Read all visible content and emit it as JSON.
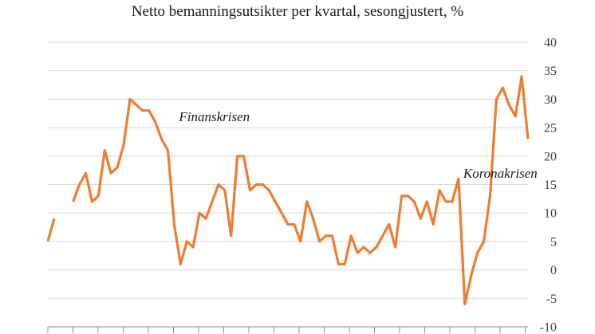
{
  "chart_data": {
    "type": "line",
    "title": "Netto bemanningsutsikter per kvartal, sesongjustert, %",
    "xlabel": "",
    "ylabel": "",
    "ylim": [
      -10,
      40
    ],
    "yticks": [
      40,
      35,
      30,
      25,
      20,
      15,
      10,
      5,
      0,
      -5,
      -10
    ],
    "y_axis_side": "right",
    "grid": "horizontal",
    "legend": "none",
    "series": [
      {
        "color": "#ED7D31",
        "values": [
          5,
          9,
          null,
          null,
          12,
          15,
          17,
          12,
          13,
          21,
          17,
          18,
          22,
          30,
          29,
          28,
          28,
          26,
          23,
          21,
          8,
          1,
          5,
          4,
          10,
          9,
          12,
          15,
          14,
          6,
          20,
          20,
          14,
          15,
          15,
          14,
          12,
          10,
          8,
          8,
          5,
          12,
          9,
          5,
          6,
          6,
          1,
          1,
          6,
          3,
          4,
          3,
          4,
          6,
          8,
          4,
          13,
          13,
          12,
          9,
          12,
          8,
          14,
          12,
          12,
          16,
          -6,
          -1,
          3,
          5,
          13,
          30,
          32,
          29,
          27,
          34,
          23
        ]
      }
    ],
    "annotations": [
      {
        "text": "Finanskrisen",
        "x": 20,
        "y": 27
      },
      {
        "text": "Koronakrisen",
        "x": 65,
        "y": 17
      }
    ]
  }
}
